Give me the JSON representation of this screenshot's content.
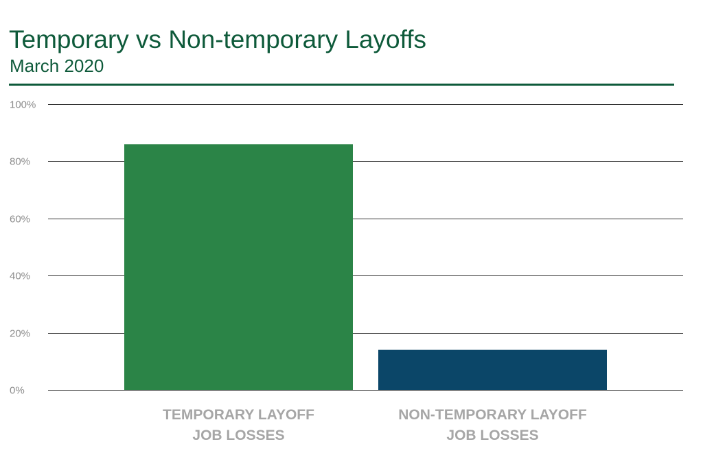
{
  "chart_data": {
    "type": "bar",
    "title": "Temporary vs Non-temporary Layoffs",
    "subtitle": "March 2020",
    "categories": [
      [
        "TEMPORARY LAYOFF",
        "JOB LOSSES"
      ],
      [
        "NON-TEMPORARY LAYOFF",
        "JOB LOSSES"
      ]
    ],
    "values": [
      86,
      14
    ],
    "bar_colors": [
      "#2b8447",
      "#0b4668"
    ],
    "ylim": [
      0,
      100
    ],
    "yticks": [
      0,
      20,
      40,
      60,
      80,
      100
    ],
    "ytick_labels": [
      "0%",
      "20%",
      "40%",
      "60%",
      "80%",
      "100%"
    ],
    "grid": true,
    "legend": "none",
    "xlabel": "",
    "ylabel": ""
  },
  "colors": {
    "title": "#0e5a3a",
    "tick_label": "#8c8c8c",
    "category_label": "#a6a6a6",
    "gridline": "#333333"
  }
}
